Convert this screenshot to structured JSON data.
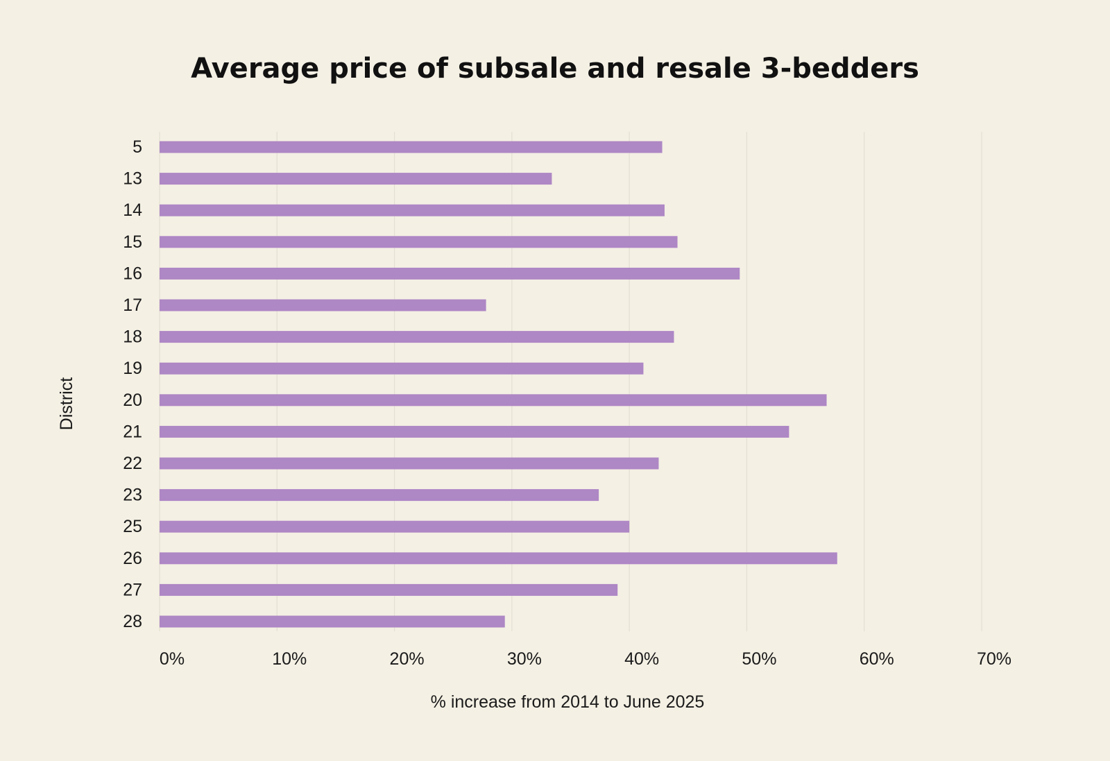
{
  "chart_data": {
    "type": "bar",
    "orientation": "horizontal",
    "title": "Average price of subsale and resale 3-bedders",
    "xlabel": "% increase from 2014 to June 2025",
    "ylabel": "District",
    "categories": [
      "5",
      "13",
      "14",
      "15",
      "16",
      "17",
      "18",
      "19",
      "20",
      "21",
      "22",
      "23",
      "25",
      "26",
      "27",
      "28"
    ],
    "series": [
      {
        "name": "% increase",
        "values": [
          42.8,
          33.4,
          43.0,
          44.1,
          49.4,
          27.8,
          43.8,
          41.2,
          56.8,
          53.6,
          42.5,
          37.4,
          40.0,
          57.7,
          39.0,
          29.4
        ]
      }
    ],
    "xlim": [
      0,
      70
    ],
    "xticks": [
      0,
      10,
      20,
      30,
      40,
      50,
      60,
      70
    ],
    "xtick_labels": [
      "0%",
      "10%",
      "20%",
      "30%",
      "40%",
      "50%",
      "60%",
      "70%"
    ],
    "grid": "vertical",
    "bar_color": "#ae87c5",
    "background_color": "#f4f0e4",
    "gridline_color": "#e3dfd2",
    "text_color": "#111111"
  }
}
